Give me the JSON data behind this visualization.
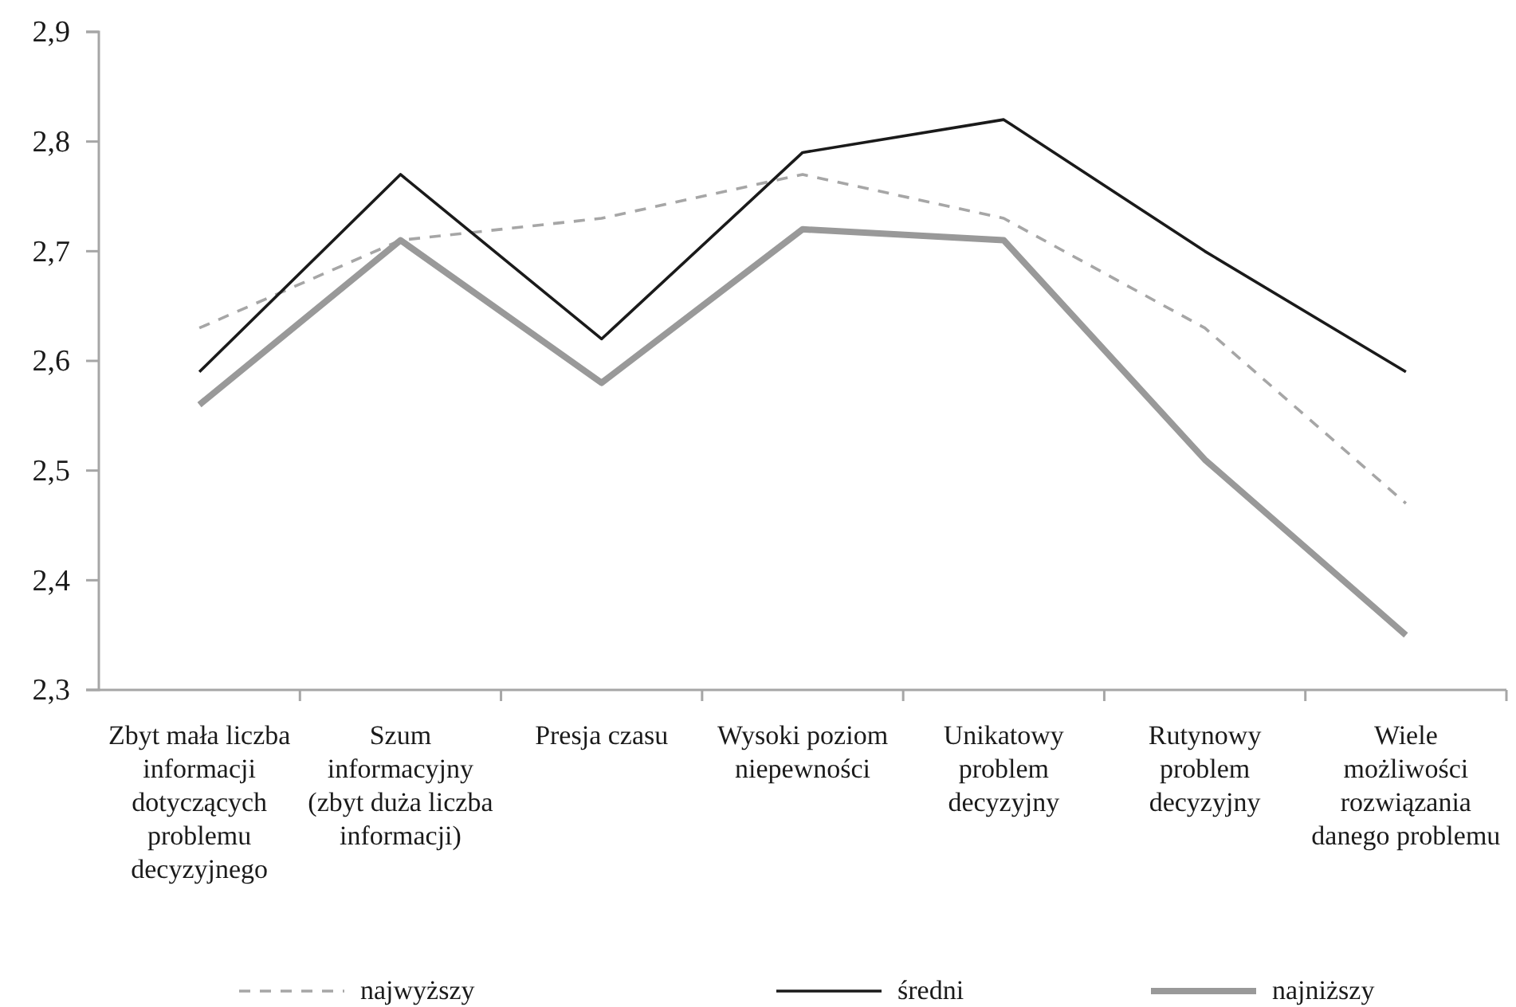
{
  "chart_data": {
    "type": "line",
    "categories": [
      "Zbyt mała liczba informacji dotyczących problemu decyzyjnego",
      "Szum informacyjny (zbyt duża liczba informacji)",
      "Presja czasu",
      "Wysoki poziom niepewności",
      "Unikatowy problem decyzyjny",
      "Rutynowy problem decyzyjny",
      "Wiele możliwości rozwiązania danego problemu"
    ],
    "series": [
      {
        "name": "najwyższy",
        "color": "#a6a6a6",
        "line_style": "dashed",
        "values": [
          2.63,
          2.71,
          2.73,
          2.77,
          2.73,
          2.63,
          2.47
        ]
      },
      {
        "name": "średni",
        "color": "#1a1a1a",
        "line_style": "solid",
        "values": [
          2.59,
          2.77,
          2.62,
          2.79,
          2.82,
          2.7,
          2.59
        ]
      },
      {
        "name": "najniższy",
        "color": "#999999",
        "line_style": "solid",
        "values": [
          2.56,
          2.71,
          2.58,
          2.72,
          2.71,
          2.51,
          2.35
        ]
      }
    ],
    "ylim": [
      2.3,
      2.9
    ],
    "yticks": [
      {
        "value": 2.3,
        "label": "2,3"
      },
      {
        "value": 2.4,
        "label": "2,4"
      },
      {
        "value": 2.5,
        "label": "2,5"
      },
      {
        "value": 2.6,
        "label": "2,6"
      },
      {
        "value": 2.7,
        "label": "2,7"
      },
      {
        "value": 2.8,
        "label": "2,8"
      },
      {
        "value": 2.9,
        "label": "2,9"
      }
    ],
    "grid": false,
    "legend": "bottom",
    "marker": "none"
  }
}
